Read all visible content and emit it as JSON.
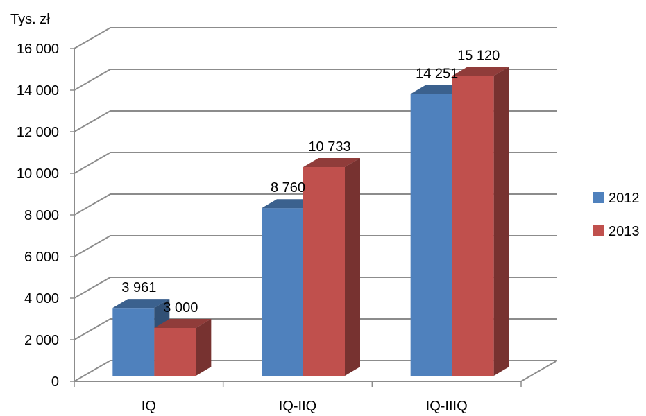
{
  "chart_data": {
    "type": "bar",
    "ylabel": "Tys. zł",
    "categories": [
      "IQ",
      "IQ-IIQ",
      "IQ-IIIQ"
    ],
    "series": [
      {
        "name": "2012",
        "values": [
          3961,
          8760,
          14251
        ],
        "labels": [
          "3 961",
          "8 760",
          "14 251"
        ],
        "color": "#4F81BD"
      },
      {
        "name": "2013",
        "values": [
          3000,
          10733,
          15120
        ],
        "labels": [
          "3 000",
          "10 733",
          "15 120"
        ],
        "color": "#C0504D"
      }
    ],
    "ylim": [
      0,
      16000
    ],
    "yticks": [
      0,
      2000,
      4000,
      6000,
      8000,
      10000,
      12000,
      14000,
      16000
    ],
    "ytick_labels": [
      "0",
      "2 000",
      "4 000",
      "6 000",
      "8 000",
      "10 000",
      "12 000",
      "14 000",
      "16 000"
    ],
    "grid": true,
    "legend_position": "right",
    "style": "3d-clustered-column"
  }
}
